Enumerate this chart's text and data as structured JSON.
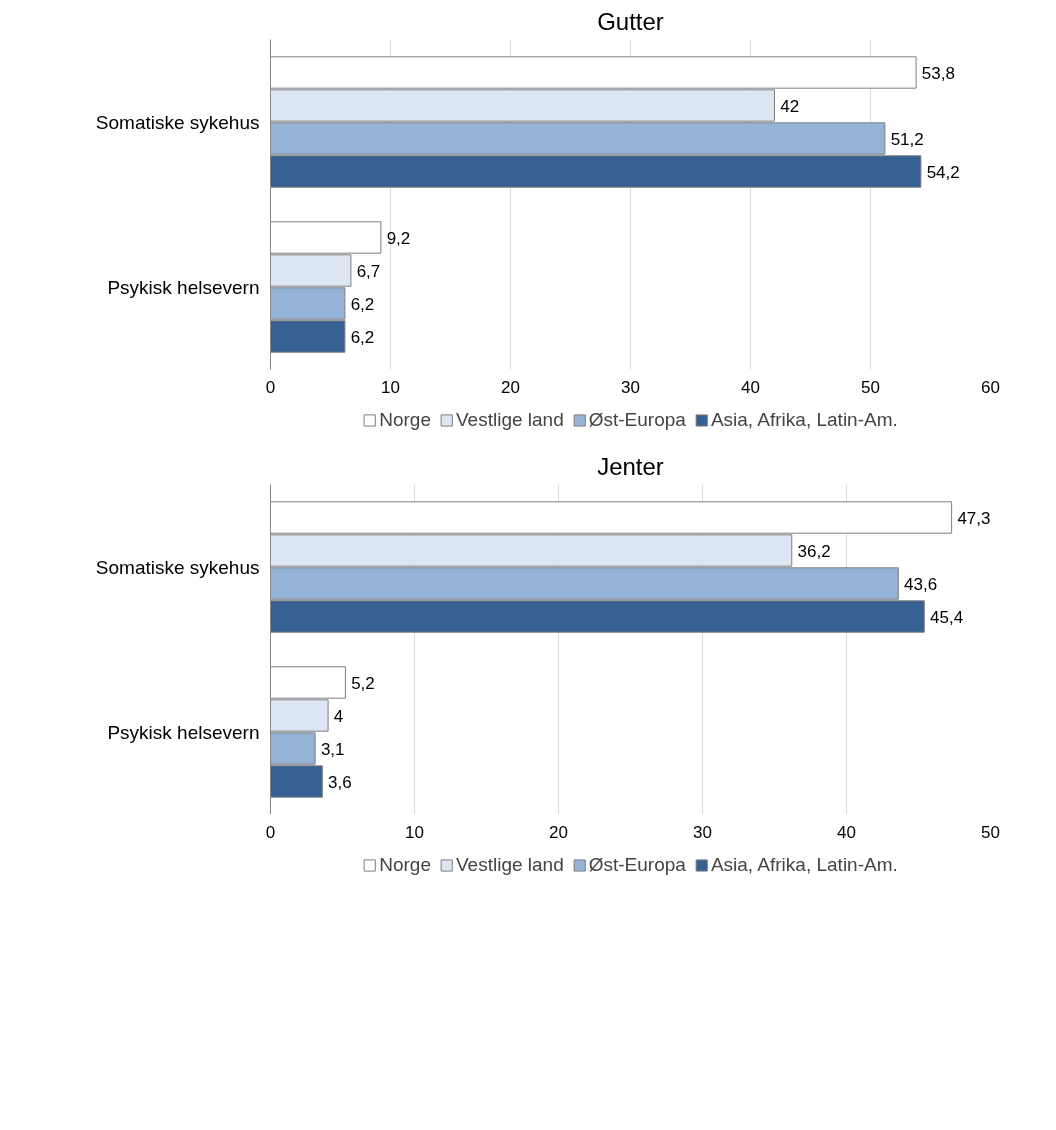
{
  "chart_data": [
    {
      "type": "bar",
      "orientation": "horizontal",
      "title": "Gutter",
      "categories": [
        "Somatiske sykehus",
        "Psykisk helsevern"
      ],
      "xlim": [
        0,
        60
      ],
      "xticks": [
        0,
        10,
        20,
        30,
        40,
        50,
        60
      ],
      "grid": "x",
      "legend": "bottom",
      "series": [
        {
          "name": "Norge",
          "color": "#ffffff",
          "values": [
            53.8,
            9.2
          ],
          "value_labels": [
            "53,8",
            "9,2"
          ]
        },
        {
          "name": "Vestlige land",
          "color": "#dce6f2",
          "values": [
            42,
            6.7
          ],
          "value_labels": [
            "42",
            "6,7"
          ]
        },
        {
          "name": "Øst-Europa",
          "color": "#95b3d7",
          "values": [
            51.2,
            6.2
          ],
          "value_labels": [
            "51,2",
            "6,2"
          ]
        },
        {
          "name": "Asia, Afrika, Latin-Am.",
          "color": "#376092",
          "values": [
            54.2,
            6.2
          ],
          "value_labels": [
            "54,2",
            "6,2"
          ]
        }
      ]
    },
    {
      "type": "bar",
      "orientation": "horizontal",
      "title": "Jenter",
      "categories": [
        "Somatiske sykehus",
        "Psykisk helsevern"
      ],
      "xlim": [
        0,
        50
      ],
      "xticks": [
        0,
        10,
        20,
        30,
        40,
        50
      ],
      "grid": "x",
      "legend": "bottom",
      "series": [
        {
          "name": "Norge",
          "color": "#ffffff",
          "values": [
            47.3,
            5.2
          ],
          "value_labels": [
            "47,3",
            "5,2"
          ]
        },
        {
          "name": "Vestlige land",
          "color": "#dce6f2",
          "values": [
            36.2,
            4
          ],
          "value_labels": [
            "36,2",
            "4"
          ]
        },
        {
          "name": "Øst-Europa",
          "color": "#95b3d7",
          "values": [
            43.6,
            3.1
          ],
          "value_labels": [
            "43,6",
            "3,1"
          ]
        },
        {
          "name": "Asia, Afrika, Latin-Am.",
          "color": "#376092",
          "values": [
            45.4,
            3.6
          ],
          "value_labels": [
            "45,4",
            "3,6"
          ]
        }
      ]
    }
  ]
}
